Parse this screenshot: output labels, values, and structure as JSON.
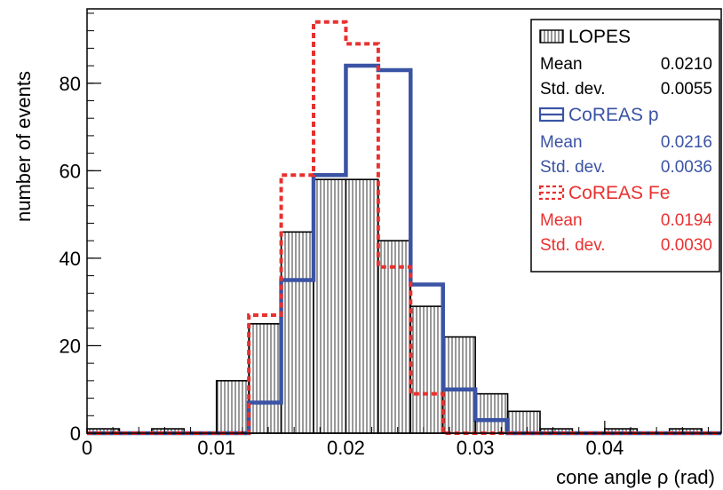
{
  "chart_data": {
    "type": "bar",
    "subtype": "histogram",
    "xlabel": "cone angle  ρ  (rad)",
    "ylabel": "number of events",
    "xlim": [
      0,
      0.049
    ],
    "ylim": [
      0,
      97
    ],
    "x_ticks": [
      0,
      0.01,
      0.02,
      0.03,
      0.04
    ],
    "x_tick_labels": [
      "0",
      "0.01",
      "0.02",
      "0.03",
      "0.04"
    ],
    "y_ticks": [
      0,
      20,
      40,
      60,
      80
    ],
    "y_tick_labels": [
      "0",
      "20",
      "40",
      "60",
      "80"
    ],
    "bin_edges": [
      0,
      0.0025,
      0.005,
      0.0075,
      0.01,
      0.0125,
      0.015,
      0.0175,
      0.02,
      0.0225,
      0.025,
      0.0275,
      0.03,
      0.0325,
      0.035,
      0.0375,
      0.04,
      0.0425,
      0.045,
      0.0475,
      0.049
    ],
    "grid": false,
    "legend_position": "top-right",
    "series": [
      {
        "name": "LOPES",
        "style": "hatched",
        "color": "#000000",
        "values": [
          1,
          0,
          1,
          0,
          12,
          25,
          46,
          58,
          58,
          44,
          29,
          22,
          9,
          5,
          1,
          0,
          1,
          0,
          1,
          0
        ],
        "stats": [
          {
            "label": "Mean",
            "value": "0.0210"
          },
          {
            "label": "Std. dev.",
            "value": "0.0055"
          }
        ]
      },
      {
        "name": "CoREAS p",
        "style": "solid",
        "color": "#3a53a4",
        "values": [
          0,
          0,
          0,
          0,
          0,
          7,
          35,
          59,
          84,
          83,
          34,
          10,
          3,
          0,
          0,
          0,
          0,
          0,
          0,
          0
        ],
        "stats": [
          {
            "label": "Mean",
            "value": "0.0216"
          },
          {
            "label": "Std. dev.",
            "value": "0.0036"
          }
        ]
      },
      {
        "name": "CoREAS Fe",
        "style": "dashed",
        "color": "#e8312f",
        "values": [
          0,
          0,
          0,
          0,
          0,
          27,
          59,
          94,
          89,
          38,
          9,
          0,
          0,
          0,
          0,
          0,
          0,
          0,
          0,
          0
        ],
        "stats": [
          {
            "label": "Mean",
            "value": "0.0194"
          },
          {
            "label": "Std. dev.",
            "value": "0.0030"
          }
        ]
      }
    ]
  }
}
